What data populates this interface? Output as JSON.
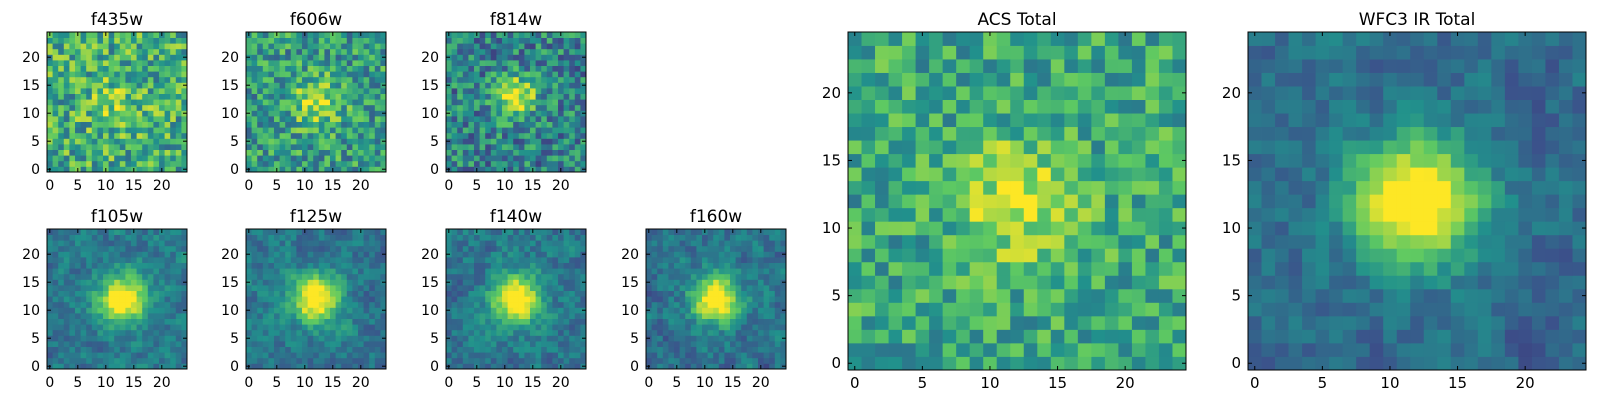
{
  "figure_description": "Grid of heatmap image panels",
  "colors": {
    "colormap": [
      "#440154",
      "#3b528b",
      "#21918c",
      "#5ec962",
      "#fde725"
    ],
    "frame": "#000000"
  },
  "chart_data": [
    {
      "type": "heatmap",
      "title": "f435w",
      "xlim": [
        0,
        25
      ],
      "ylim": [
        0,
        25
      ],
      "xticks": [
        0,
        5,
        10,
        15,
        20
      ],
      "yticks": [
        0,
        5,
        10,
        15,
        20
      ],
      "source": {
        "cx": 12,
        "cy": 12,
        "peak": 0.15,
        "width": 3.5
      },
      "noise_mean": 0.62,
      "noise_amp": 0.55,
      "smooth": 0,
      "seed": 11
    },
    {
      "type": "heatmap",
      "title": "f606w",
      "xlim": [
        0,
        25
      ],
      "ylim": [
        0,
        25
      ],
      "xticks": [
        0,
        5,
        10,
        15,
        20
      ],
      "yticks": [
        0,
        5,
        10,
        15,
        20
      ],
      "source": {
        "cx": 12,
        "cy": 12,
        "peak": 0.35,
        "width": 3.0
      },
      "noise_mean": 0.55,
      "noise_amp": 0.5,
      "smooth": 0,
      "seed": 23
    },
    {
      "type": "heatmap",
      "title": "f814w",
      "xlim": [
        0,
        25
      ],
      "ylim": [
        0,
        25
      ],
      "xticks": [
        0,
        5,
        10,
        15,
        20
      ],
      "yticks": [
        0,
        5,
        10,
        15,
        20
      ],
      "source": {
        "cx": 12,
        "cy": 13,
        "peak": 0.55,
        "width": 2.5
      },
      "noise_mean": 0.45,
      "noise_amp": 0.5,
      "smooth": 0,
      "seed": 37
    },
    {
      "type": "heatmap",
      "title": "f105w",
      "xlim": [
        0,
        25
      ],
      "ylim": [
        0,
        25
      ],
      "xticks": [
        0,
        5,
        10,
        15,
        20
      ],
      "yticks": [
        0,
        5,
        10,
        15,
        20
      ],
      "source": {
        "cx": 13,
        "cy": 12,
        "peak": 0.75,
        "width": 3.0
      },
      "noise_mean": 0.4,
      "noise_amp": 0.4,
      "smooth": 1,
      "seed": 41
    },
    {
      "type": "heatmap",
      "title": "f125w",
      "xlim": [
        0,
        25
      ],
      "ylim": [
        0,
        25
      ],
      "xticks": [
        0,
        5,
        10,
        15,
        20
      ],
      "yticks": [
        0,
        5,
        10,
        15,
        20
      ],
      "source": {
        "cx": 12,
        "cy": 12,
        "peak": 0.7,
        "width": 3.0
      },
      "noise_mean": 0.4,
      "noise_amp": 0.4,
      "smooth": 1,
      "seed": 53
    },
    {
      "type": "heatmap",
      "title": "f140w",
      "xlim": [
        0,
        25
      ],
      "ylim": [
        0,
        25
      ],
      "xticks": [
        0,
        5,
        10,
        15,
        20
      ],
      "yticks": [
        0,
        5,
        10,
        15,
        20
      ],
      "source": {
        "cx": 12,
        "cy": 12,
        "peak": 0.75,
        "width": 3.0
      },
      "noise_mean": 0.4,
      "noise_amp": 0.42,
      "smooth": 1,
      "seed": 67
    },
    {
      "type": "heatmap",
      "title": "f160w",
      "xlim": [
        0,
        25
      ],
      "ylim": [
        0,
        25
      ],
      "xticks": [
        0,
        5,
        10,
        15,
        20
      ],
      "yticks": [
        0,
        5,
        10,
        15,
        20
      ],
      "source": {
        "cx": 12,
        "cy": 12,
        "peak": 0.75,
        "width": 3.0
      },
      "noise_mean": 0.38,
      "noise_amp": 0.42,
      "smooth": 1,
      "seed": 79
    },
    {
      "type": "heatmap",
      "title": "ACS Total",
      "xlim": [
        0,
        25
      ],
      "ylim": [
        0,
        25
      ],
      "xticks": [
        0,
        5,
        10,
        15,
        20
      ],
      "yticks": [
        0,
        5,
        10,
        15,
        20
      ],
      "source": {
        "cx": 12,
        "cy": 12,
        "peak": 0.35,
        "width": 3.0
      },
      "noise_mean": 0.6,
      "noise_amp": 0.42,
      "smooth": 0,
      "seed": 97
    },
    {
      "type": "heatmap",
      "title": "WFC3 IR Total",
      "xlim": [
        0,
        25
      ],
      "ylim": [
        0,
        25
      ],
      "xticks": [
        0,
        5,
        10,
        15,
        20
      ],
      "yticks": [
        0,
        5,
        10,
        15,
        20
      ],
      "source": {
        "cx": 12,
        "cy": 12,
        "peak": 0.85,
        "width": 3.2
      },
      "noise_mean": 0.35,
      "noise_amp": 0.35,
      "smooth": 1,
      "seed": 131
    }
  ]
}
